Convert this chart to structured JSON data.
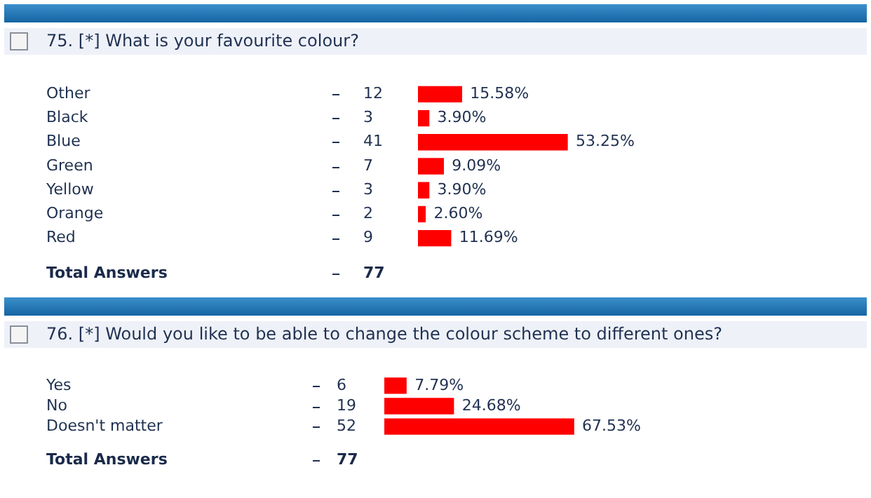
{
  "chart_data": [
    {
      "type": "bar",
      "orientation": "horizontal",
      "title": "75. [*] What is your favourite colour?",
      "categories": [
        "Other",
        "Black",
        "Blue",
        "Green",
        "Yellow",
        "Orange",
        "Red"
      ],
      "values": [
        15.58,
        3.9,
        53.25,
        9.09,
        3.9,
        2.6,
        11.69
      ],
      "color": "#ff0000",
      "value_labels": [
        "15.58%",
        "3.90%",
        "53.25%",
        "9.09%",
        "3.90%",
        "2.60%",
        "11.69%"
      ],
      "annotations": [
        "12",
        "3",
        "41",
        "7",
        "3",
        "2",
        "9",
        "Total Answers",
        "77"
      ]
    },
    {
      "type": "bar",
      "orientation": "horizontal",
      "title": "76. [*] Would you like to be able to change the colour scheme to different ones?",
      "categories": [
        "Yes",
        "No",
        "Doesn't matter"
      ],
      "values": [
        7.79,
        24.68,
        67.53
      ],
      "color": "#ff0000",
      "value_labels": [
        "7.79%",
        "24.68%",
        "67.53%"
      ],
      "annotations": [
        "6",
        "19",
        "52",
        "Total Answers",
        "77"
      ]
    }
  ]
}
